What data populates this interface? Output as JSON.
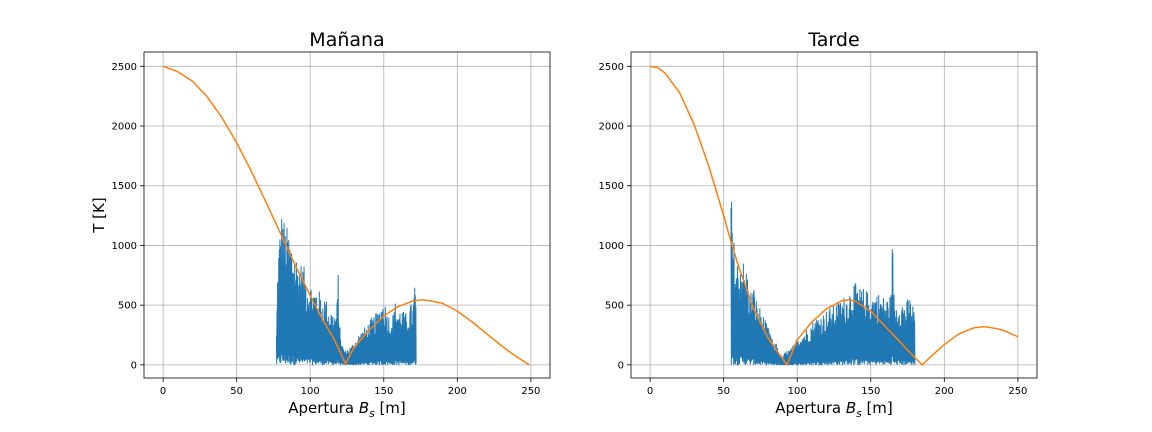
{
  "colors": {
    "measured": "#1f77b4",
    "model": "#ff7f0e",
    "grid": "#b0b0b0"
  },
  "chart_data": [
    {
      "type": "line",
      "title": "Mañana",
      "xlabel_text": "Apertura ",
      "xlabel_math": "B",
      "xlabel_sub": "s",
      "xlabel_unit": " [m]",
      "ylabel": "T [K]",
      "xlim": [
        -13,
        263
      ],
      "ylim": [
        -110,
        2620
      ],
      "xticks": [
        0,
        50,
        100,
        150,
        200,
        250
      ],
      "yticks": [
        0,
        500,
        1000,
        1500,
        2000,
        2500
      ],
      "xtick_labels": [
        "0",
        "50",
        "100",
        "150",
        "200",
        "250"
      ],
      "ytick_labels": [
        "0",
        "500",
        "1000",
        "1500",
        "2000",
        "2500"
      ],
      "grid": true,
      "series": [
        {
          "kind": "noisy",
          "x": [
            77,
            78,
            80,
            81,
            83,
            85,
            88,
            90,
            92,
            95,
            98,
            100,
            103,
            105,
            108,
            110,
            112,
            114,
            116,
            118,
            119,
            120,
            122,
            124,
            126,
            128,
            130,
            132,
            134,
            136,
            138,
            140,
            142,
            144,
            146,
            148,
            150,
            152,
            154,
            156,
            158,
            160,
            162,
            164,
            166,
            168,
            170,
            171,
            172
          ],
          "y": [
            290,
            930,
            1250,
            1320,
            1170,
            1150,
            1050,
            960,
            880,
            850,
            740,
            700,
            650,
            660,
            560,
            590,
            500,
            480,
            430,
            470,
            790,
            330,
            160,
            120,
            140,
            160,
            200,
            240,
            280,
            300,
            330,
            360,
            400,
            420,
            450,
            520,
            560,
            480,
            400,
            420,
            540,
            470,
            490,
            430,
            440,
            510,
            520,
            720,
            560
          ]
        },
        {
          "kind": "model",
          "x": [
            0,
            10,
            20,
            30,
            40,
            50,
            60,
            70,
            80,
            90,
            100,
            110,
            116,
            124,
            130,
            140,
            150,
            160,
            170,
            176,
            180,
            190,
            200,
            210,
            220,
            230,
            240,
            249
          ],
          "y": [
            2500,
            2455,
            2375,
            2245,
            2070,
            1860,
            1620,
            1360,
            1095,
            830,
            580,
            345,
            220,
            10,
            150,
            290,
            410,
            490,
            535,
            545,
            540,
            515,
            450,
            360,
            260,
            160,
            70,
            0
          ]
        }
      ]
    },
    {
      "type": "line",
      "title": "Tarde",
      "xlabel_text": "Apertura ",
      "xlabel_math": "B",
      "xlabel_sub": "s",
      "xlabel_unit": " [m]",
      "ylabel": "",
      "xlim": [
        -13,
        263
      ],
      "ylim": [
        -110,
        2620
      ],
      "xticks": [
        0,
        50,
        100,
        150,
        200,
        250
      ],
      "yticks": [
        0,
        500,
        1000,
        1500,
        2000,
        2500
      ],
      "xtick_labels": [
        "0",
        "50",
        "100",
        "150",
        "200",
        "250"
      ],
      "ytick_labels": [
        "0",
        "500",
        "1000",
        "1500",
        "2000",
        "2500"
      ],
      "grid": true,
      "series": [
        {
          "kind": "noisy",
          "x": [
            55,
            55.5,
            56,
            57,
            58,
            60,
            62,
            64,
            66,
            68,
            70,
            72,
            74,
            76,
            78,
            80,
            82,
            84,
            86,
            88,
            90,
            92,
            95,
            98,
            100,
            103,
            106,
            110,
            114,
            118,
            122,
            126,
            130,
            134,
            138,
            142,
            146,
            150,
            154,
            158,
            160,
            162,
            164,
            164.5,
            166,
            170,
            174,
            176,
            178,
            180
          ],
          "y": [
            1750,
            1300,
            1150,
            1050,
            900,
            880,
            950,
            850,
            800,
            600,
            700,
            560,
            500,
            450,
            380,
            320,
            280,
            160,
            200,
            90,
            70,
            110,
            130,
            170,
            240,
            260,
            300,
            360,
            420,
            440,
            480,
            520,
            560,
            600,
            700,
            650,
            640,
            590,
            620,
            580,
            560,
            580,
            600,
            1200,
            520,
            560,
            520,
            580,
            540,
            450
          ]
        },
        {
          "kind": "model",
          "x": [
            0,
            5,
            10,
            20,
            30,
            40,
            50,
            55,
            60,
            70,
            80,
            86,
            93,
            100,
            110,
            120,
            130,
            135,
            140,
            150,
            160,
            170,
            180,
            185,
            190,
            200,
            210,
            220,
            227,
            235,
            240,
            250
          ],
          "y": [
            2500,
            2490,
            2445,
            2280,
            2010,
            1660,
            1250,
            1030,
            830,
            480,
            230,
            120,
            0,
            210,
            360,
            470,
            535,
            545,
            530,
            450,
            320,
            190,
            60,
            0,
            60,
            170,
            260,
            310,
            320,
            305,
            290,
            235
          ]
        }
      ]
    }
  ]
}
